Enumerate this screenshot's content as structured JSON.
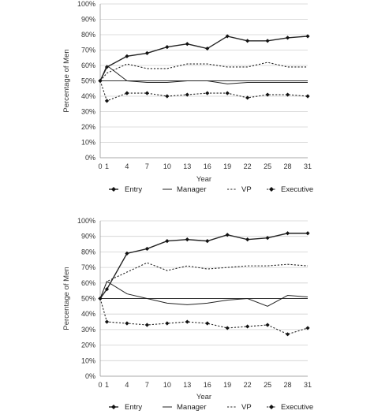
{
  "chart_data": [
    {
      "type": "line",
      "xlabel": "Year",
      "ylabel": "Percentage of Men",
      "ylim": [
        0,
        100
      ],
      "yticks": [
        "0%",
        "10%",
        "20%",
        "30%",
        "40%",
        "50%",
        "60%",
        "70%",
        "80%",
        "90%",
        "100%"
      ],
      "x": [
        0,
        1,
        4,
        7,
        10,
        13,
        16,
        19,
        22,
        25,
        28,
        31
      ],
      "grid": true,
      "legend_position": "bottom",
      "series": [
        {
          "name": "Entry",
          "style": "solid-marker",
          "values": [
            50,
            59,
            66,
            68,
            72,
            74,
            71,
            79,
            76,
            76,
            78,
            79
          ]
        },
        {
          "name": "Manager",
          "style": "solid",
          "values": [
            50,
            60,
            50,
            49,
            49,
            50,
            50,
            48,
            49,
            49,
            49,
            49
          ]
        },
        {
          "name": "VP",
          "style": "dotted",
          "values": [
            50,
            55,
            61,
            58,
            58,
            61,
            61,
            59,
            59,
            62,
            59,
            59
          ]
        },
        {
          "name": "Executive",
          "style": "dotted-marker",
          "values": [
            50,
            37,
            42,
            42,
            40,
            41,
            42,
            42,
            39,
            41,
            41,
            40
          ]
        }
      ]
    },
    {
      "type": "line",
      "xlabel": "Year",
      "ylabel": "Percentage of Men",
      "ylim": [
        0,
        100
      ],
      "yticks": [
        "0%",
        "10%",
        "20%",
        "30%",
        "40%",
        "50%",
        "60%",
        "70%",
        "80%",
        "90%",
        "100%"
      ],
      "x": [
        0,
        1,
        4,
        7,
        10,
        13,
        16,
        19,
        22,
        25,
        28,
        31
      ],
      "grid": true,
      "legend_position": "bottom",
      "series": [
        {
          "name": "Entry",
          "style": "solid-marker",
          "values": [
            50,
            56,
            79,
            82,
            87,
            88,
            87,
            91,
            88,
            89,
            92,
            92
          ]
        },
        {
          "name": "Manager",
          "style": "solid",
          "values": [
            50,
            61,
            53,
            50,
            47,
            46,
            47,
            49,
            50,
            45,
            52,
            51
          ]
        },
        {
          "name": "VP",
          "style": "dotted",
          "values": [
            50,
            61,
            67,
            73,
            68,
            71,
            69,
            70,
            71,
            71,
            72,
            71
          ]
        },
        {
          "name": "Executive",
          "style": "dotted-marker",
          "values": [
            50,
            35,
            34,
            33,
            34,
            35,
            34,
            31,
            32,
            33,
            27,
            31
          ]
        }
      ]
    }
  ]
}
